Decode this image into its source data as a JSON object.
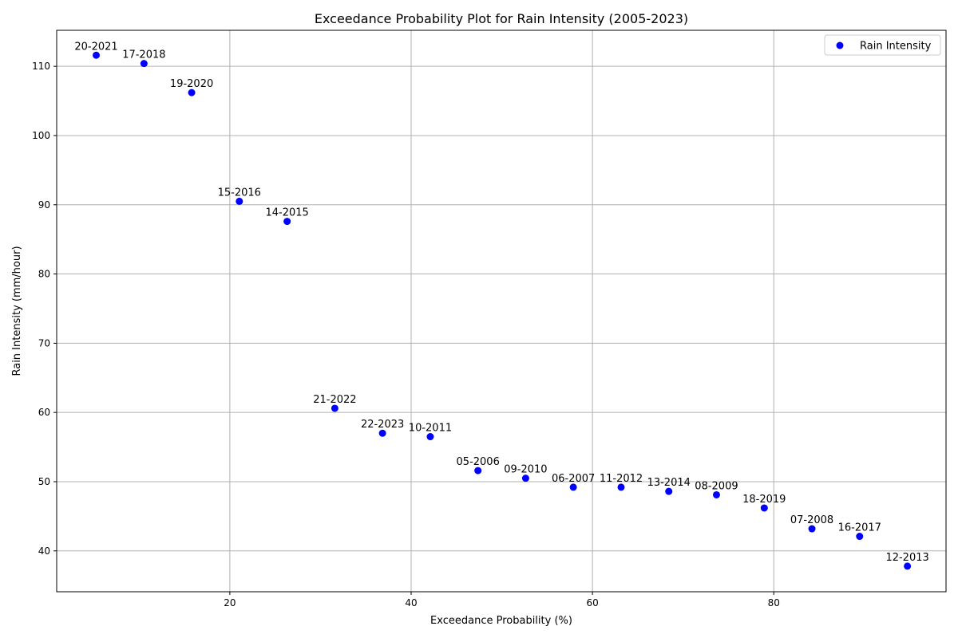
{
  "chart_data": {
    "type": "scatter",
    "title": "Exceedance Probability Plot for Rain Intensity (2005-2023)",
    "xlabel": "Exceedance Probability (%)",
    "ylabel": "Rain Intensity (mm/hour)",
    "xlim": [
      0.9,
      99.0
    ],
    "ylim": [
      34.1,
      115.2
    ],
    "xticks": [
      20,
      40,
      60,
      80
    ],
    "yticks": [
      40,
      50,
      60,
      70,
      80,
      90,
      100,
      110
    ],
    "grid": true,
    "legend_position": "top-right",
    "series": [
      {
        "name": "Rain Intensity",
        "color": "#0000ff",
        "points": [
          {
            "label": "20-2021",
            "x": 5.26,
            "y": 111.6
          },
          {
            "label": "17-2018",
            "x": 10.53,
            "y": 110.4
          },
          {
            "label": "19-2020",
            "x": 15.79,
            "y": 106.2
          },
          {
            "label": "15-2016",
            "x": 21.05,
            "y": 90.5
          },
          {
            "label": "14-2015",
            "x": 26.32,
            "y": 87.6
          },
          {
            "label": "21-2022",
            "x": 31.58,
            "y": 60.6
          },
          {
            "label": "22-2023",
            "x": 36.84,
            "y": 57.0
          },
          {
            "label": "10-2011",
            "x": 42.11,
            "y": 56.5
          },
          {
            "label": "05-2006",
            "x": 47.37,
            "y": 51.6
          },
          {
            "label": "09-2010",
            "x": 52.63,
            "y": 50.5
          },
          {
            "label": "06-2007",
            "x": 57.89,
            "y": 49.2
          },
          {
            "label": "11-2012",
            "x": 63.16,
            "y": 49.2
          },
          {
            "label": "13-2014",
            "x": 68.42,
            "y": 48.6
          },
          {
            "label": "08-2009",
            "x": 73.68,
            "y": 48.1
          },
          {
            "label": "18-2019",
            "x": 78.95,
            "y": 46.2
          },
          {
            "label": "07-2008",
            "x": 84.21,
            "y": 43.2
          },
          {
            "label": "16-2017",
            "x": 89.47,
            "y": 42.1
          },
          {
            "label": "12-2013",
            "x": 94.74,
            "y": 37.8
          }
        ]
      }
    ]
  }
}
